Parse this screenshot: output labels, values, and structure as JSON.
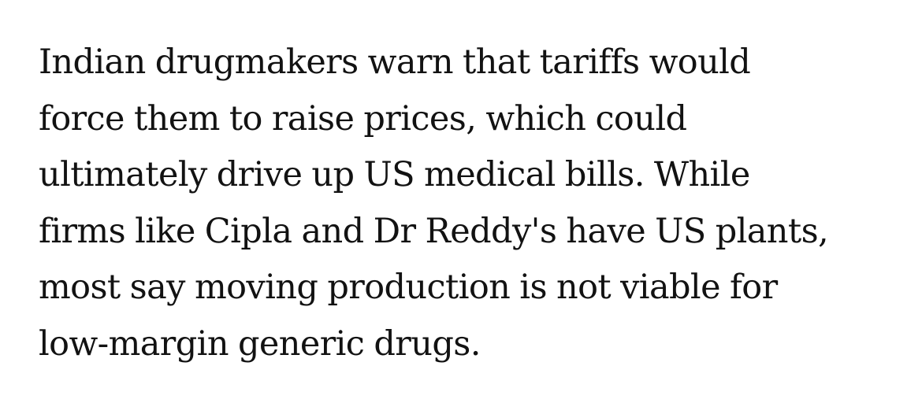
{
  "article": {
    "paragraph_lines": [
      "Indian drugmakers warn that tariffs would",
      "force them to raise prices, which could",
      "ultimately drive up US medical bills. While",
      "firms like Cipla and Dr Reddy's have US plants,",
      "most say moving production is not viable for",
      "low-margin generic drugs."
    ]
  }
}
